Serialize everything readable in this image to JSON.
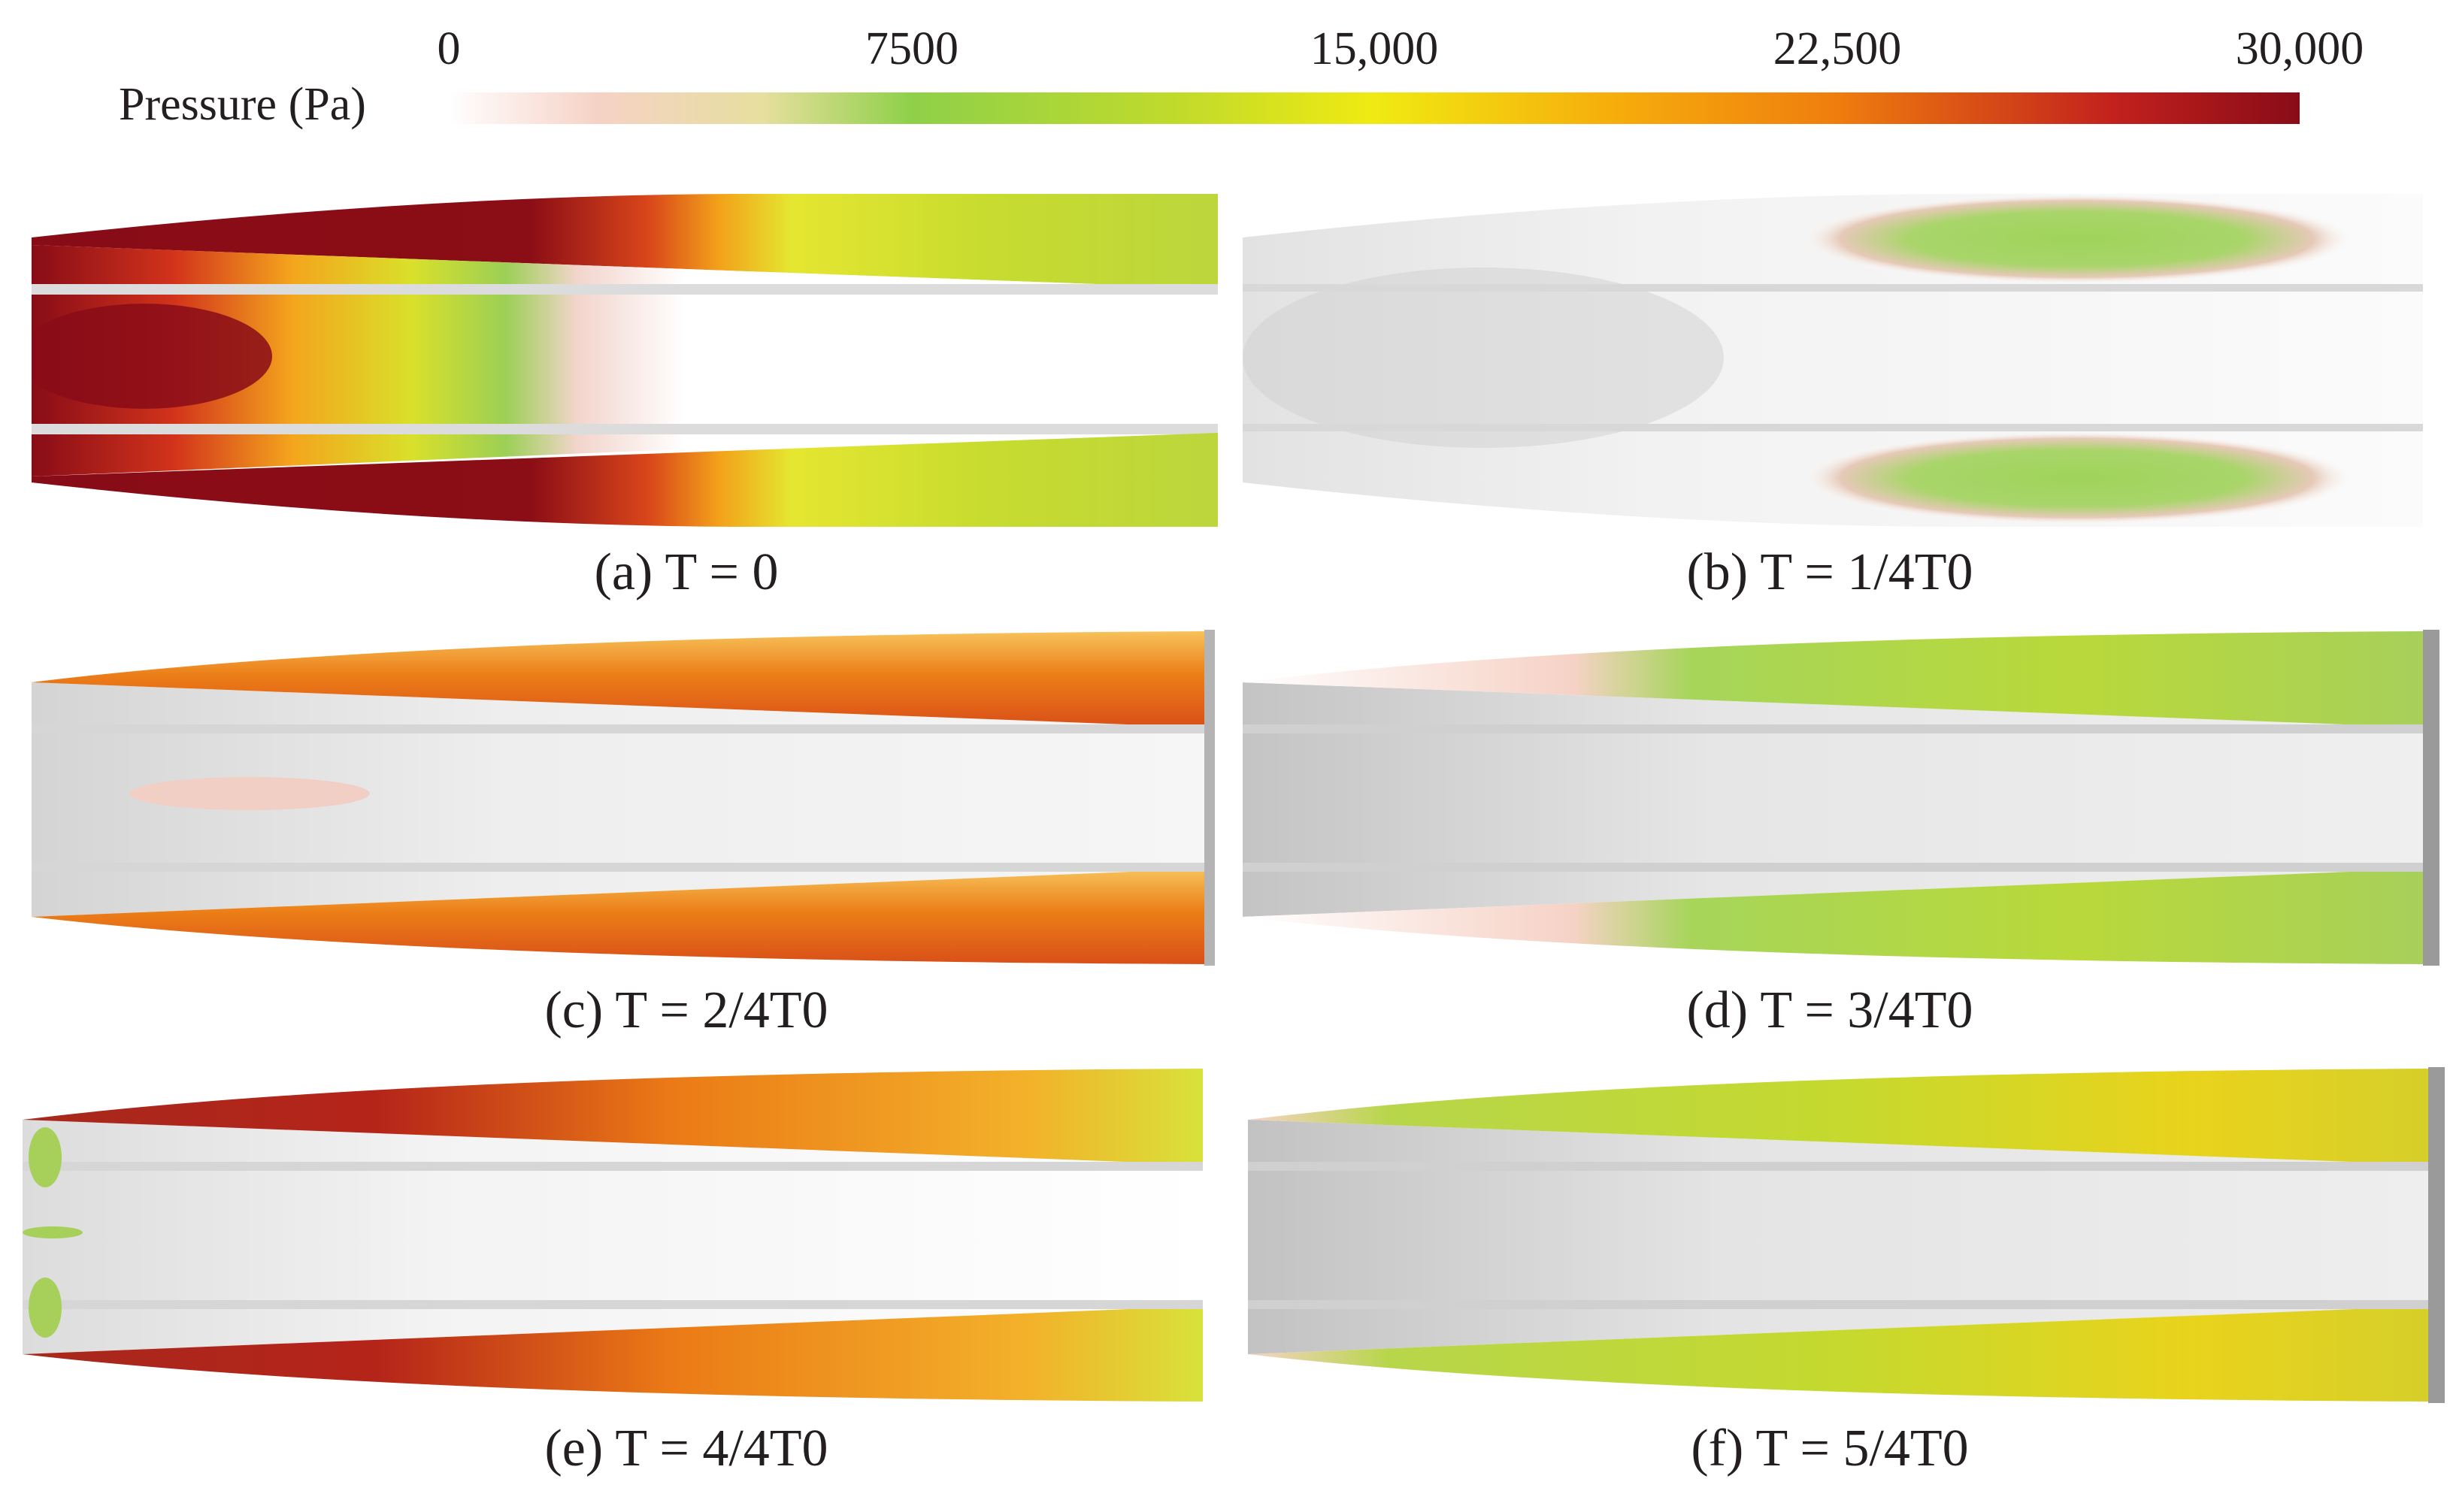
{
  "colorbar": {
    "title": "Pressure (Pa)",
    "ticks": [
      "0",
      "7500",
      "15,000",
      "22,500",
      "30,000"
    ],
    "min": 0,
    "max": 30000
  },
  "panels": [
    {
      "id": "a",
      "caption": "(a) T = 0"
    },
    {
      "id": "b",
      "caption": "(b) T = 1/4T0"
    },
    {
      "id": "c",
      "caption": "(c) T = 2/4T0"
    },
    {
      "id": "d",
      "caption": "(d) T = 3/4T0"
    },
    {
      "id": "e",
      "caption": "(e) T = 4/4T0"
    },
    {
      "id": "f",
      "caption": "(f) T = 5/4T0"
    }
  ]
}
